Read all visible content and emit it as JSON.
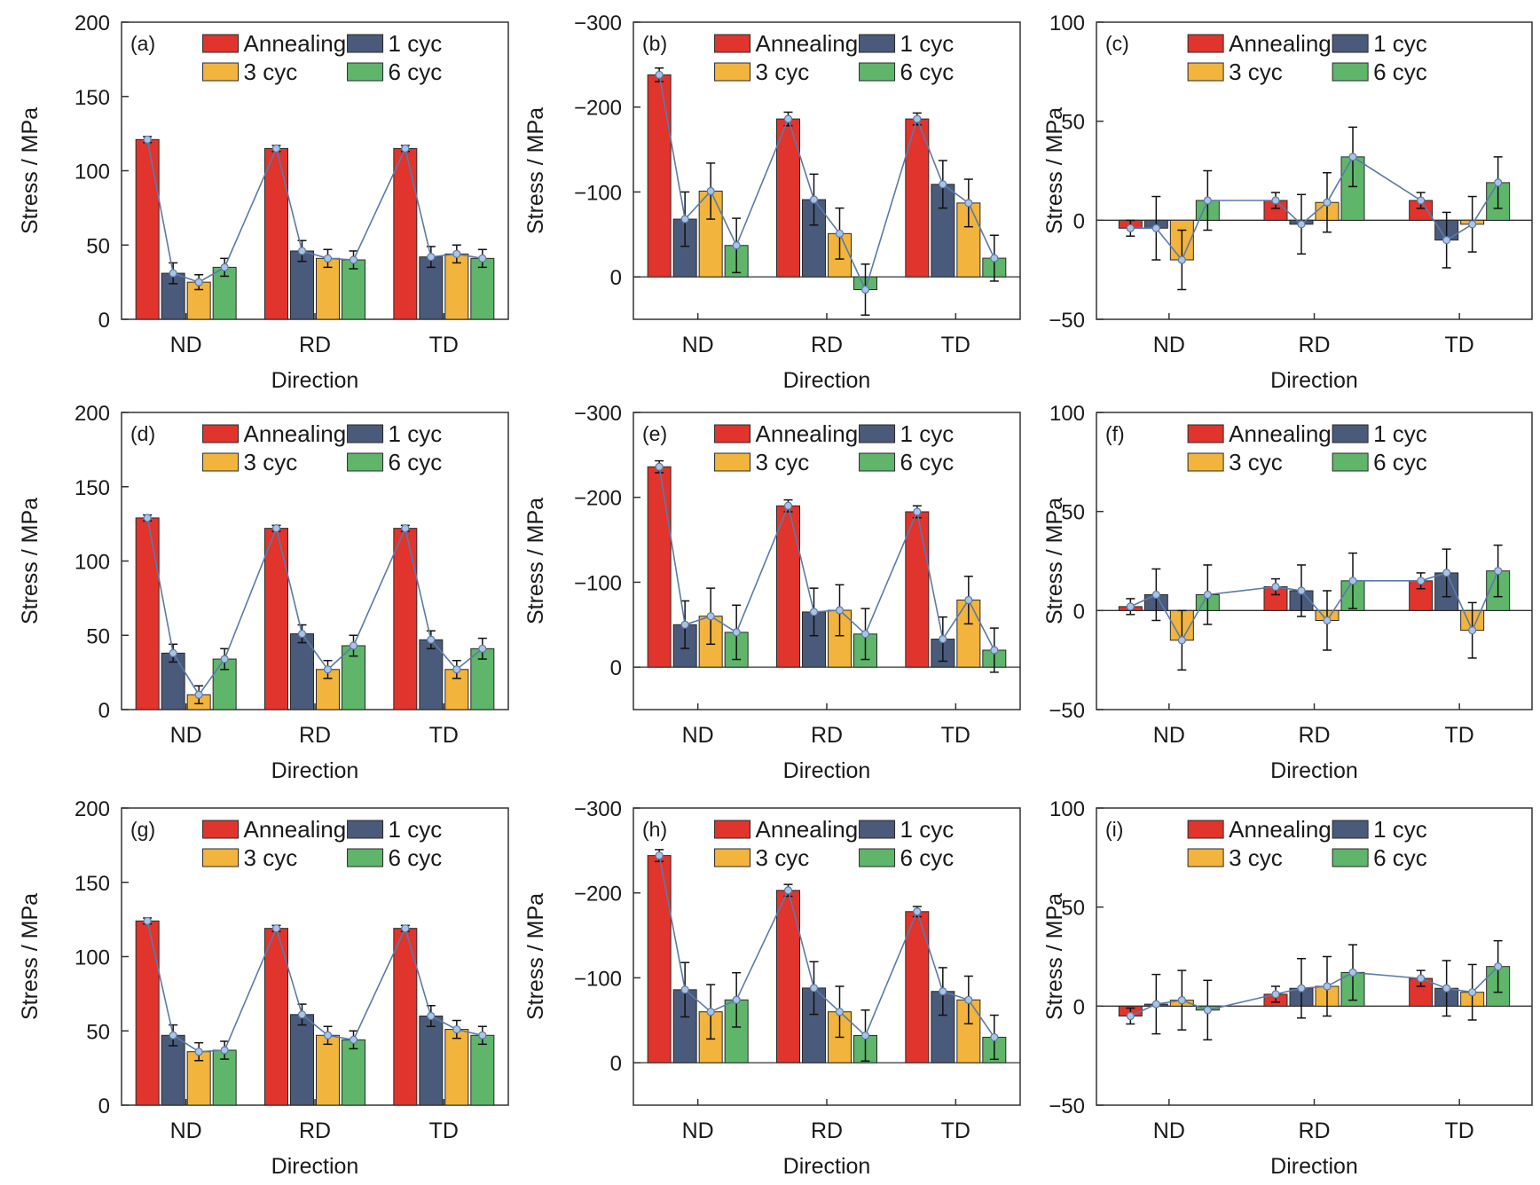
{
  "chart_data": [
    {
      "type": "bar",
      "panel_label": "(a)",
      "xlabel": "Direction",
      "ylabel": "Stress / MPa",
      "categories": [
        "ND",
        "RD",
        "TD"
      ],
      "yticks": [
        "200",
        "150",
        "100",
        "50",
        "0"
      ],
      "ylim": [
        0,
        200
      ],
      "inverted": false,
      "zero_line": false,
      "series": [
        {
          "name": "Annealing",
          "values": [
            121,
            115,
            115
          ],
          "errors": [
            2,
            2,
            2
          ]
        },
        {
          "name": "1 cyc",
          "values": [
            31,
            46,
            42
          ],
          "errors": [
            7,
            7,
            7
          ]
        },
        {
          "name": "3 cyc",
          "values": [
            25,
            41,
            44
          ],
          "errors": [
            5,
            6,
            6
          ]
        },
        {
          "name": "6 cyc",
          "values": [
            35,
            40,
            41
          ],
          "errors": [
            6,
            6,
            6
          ]
        }
      ]
    },
    {
      "type": "bar",
      "panel_label": "(b)",
      "xlabel": "Direction",
      "ylabel": "Stress / MPa",
      "categories": [
        "ND",
        "RD",
        "TD"
      ],
      "yticks": [
        "−300",
        "−200",
        "−100",
        "0"
      ],
      "ylim": [
        50,
        -300
      ],
      "inverted": true,
      "zero_line": true,
      "series": [
        {
          "name": "Annealing",
          "values": [
            -238,
            -186,
            -186
          ],
          "errors": [
            8,
            8,
            7
          ]
        },
        {
          "name": "1 cyc",
          "values": [
            -68,
            -91,
            -109
          ],
          "errors": [
            32,
            30,
            28
          ]
        },
        {
          "name": "3 cyc",
          "values": [
            -101,
            -51,
            -87
          ],
          "errors": [
            33,
            30,
            28
          ]
        },
        {
          "name": "6 cyc",
          "values": [
            -37,
            15,
            -22
          ],
          "errors": [
            32,
            30,
            27
          ]
        }
      ]
    },
    {
      "type": "bar",
      "panel_label": "(c)",
      "xlabel": "Direction",
      "ylabel": "Stress / MPa",
      "categories": [
        "ND",
        "RD",
        "TD"
      ],
      "yticks": [
        "100",
        "50",
        "0",
        "−50"
      ],
      "ylim": [
        -50,
        100
      ],
      "inverted": false,
      "zero_line": true,
      "series": [
        {
          "name": "Annealing",
          "values": [
            -4,
            10,
            10
          ],
          "errors": [
            4,
            4,
            4
          ]
        },
        {
          "name": "1 cyc",
          "values": [
            -4,
            -2,
            -10
          ],
          "errors": [
            16,
            15,
            14
          ]
        },
        {
          "name": "3 cyc",
          "values": [
            -20,
            9,
            -2
          ],
          "errors": [
            15,
            15,
            14
          ]
        },
        {
          "name": "6 cyc",
          "values": [
            10,
            32,
            19
          ],
          "errors": [
            15,
            15,
            13
          ]
        }
      ]
    },
    {
      "type": "bar",
      "panel_label": "(d)",
      "xlabel": "Direction",
      "ylabel": "Stress / MPa",
      "categories": [
        "ND",
        "RD",
        "TD"
      ],
      "yticks": [
        "200",
        "150",
        "100",
        "50",
        "0"
      ],
      "ylim": [
        0,
        200
      ],
      "inverted": false,
      "zero_line": false,
      "series": [
        {
          "name": "Annealing",
          "values": [
            129,
            122,
            122
          ],
          "errors": [
            2,
            2,
            2
          ]
        },
        {
          "name": "1 cyc",
          "values": [
            38,
            51,
            47
          ],
          "errors": [
            6,
            6,
            6
          ]
        },
        {
          "name": "3 cyc",
          "values": [
            10,
            27,
            27
          ],
          "errors": [
            6,
            6,
            6
          ]
        },
        {
          "name": "6 cyc",
          "values": [
            34,
            43,
            41
          ],
          "errors": [
            7,
            7,
            7
          ]
        }
      ]
    },
    {
      "type": "bar",
      "panel_label": "(e)",
      "xlabel": "Direction",
      "ylabel": "Stress / MPa",
      "categories": [
        "ND",
        "RD",
        "TD"
      ],
      "yticks": [
        "−300",
        "−200",
        "−100",
        "0"
      ],
      "ylim": [
        50,
        -300
      ],
      "inverted": true,
      "zero_line": true,
      "series": [
        {
          "name": "Annealing",
          "values": [
            -236,
            -190,
            -183
          ],
          "errors": [
            7,
            7,
            7
          ]
        },
        {
          "name": "1 cyc",
          "values": [
            -50,
            -65,
            -33
          ],
          "errors": [
            28,
            28,
            26
          ]
        },
        {
          "name": "3 cyc",
          "values": [
            -60,
            -67,
            -79
          ],
          "errors": [
            33,
            30,
            28
          ]
        },
        {
          "name": "6 cyc",
          "values": [
            -41,
            -39,
            -20
          ],
          "errors": [
            32,
            30,
            26
          ]
        }
      ]
    },
    {
      "type": "bar",
      "panel_label": "(f)",
      "xlabel": "Direction",
      "ylabel": "Stress / MPa",
      "categories": [
        "ND",
        "RD",
        "TD"
      ],
      "yticks": [
        "100",
        "50",
        "0",
        "−50"
      ],
      "ylim": [
        -50,
        100
      ],
      "inverted": false,
      "zero_line": true,
      "series": [
        {
          "name": "Annealing",
          "values": [
            2,
            12,
            15
          ],
          "errors": [
            4,
            4,
            4
          ]
        },
        {
          "name": "1 cyc",
          "values": [
            8,
            10,
            19
          ],
          "errors": [
            13,
            13,
            12
          ]
        },
        {
          "name": "3 cyc",
          "values": [
            -15,
            -5,
            -10
          ],
          "errors": [
            15,
            15,
            14
          ]
        },
        {
          "name": "6 cyc",
          "values": [
            8,
            15,
            20
          ],
          "errors": [
            15,
            14,
            13
          ]
        }
      ]
    },
    {
      "type": "bar",
      "panel_label": "(g)",
      "xlabel": "Direction",
      "ylabel": "Stress / MPa",
      "categories": [
        "ND",
        "RD",
        "TD"
      ],
      "yticks": [
        "200",
        "150",
        "100",
        "50",
        "0"
      ],
      "ylim": [
        0,
        200
      ],
      "inverted": false,
      "zero_line": false,
      "series": [
        {
          "name": "Annealing",
          "values": [
            124,
            119,
            119
          ],
          "errors": [
            2,
            2,
            2
          ]
        },
        {
          "name": "1 cyc",
          "values": [
            47,
            61,
            60
          ],
          "errors": [
            7,
            7,
            7
          ]
        },
        {
          "name": "3 cyc",
          "values": [
            36,
            47,
            51
          ],
          "errors": [
            6,
            6,
            6
          ]
        },
        {
          "name": "6 cyc",
          "values": [
            37,
            44,
            47
          ],
          "errors": [
            6,
            6,
            6
          ]
        }
      ]
    },
    {
      "type": "bar",
      "panel_label": "(h)",
      "xlabel": "Direction",
      "ylabel": "Stress / MPa",
      "categories": [
        "ND",
        "RD",
        "TD"
      ],
      "yticks": [
        "−300",
        "−200",
        "−100",
        "0"
      ],
      "ylim": [
        50,
        -300
      ],
      "inverted": true,
      "zero_line": true,
      "series": [
        {
          "name": "Annealing",
          "values": [
            -244,
            -203,
            -178
          ],
          "errors": [
            7,
            7,
            6
          ]
        },
        {
          "name": "1 cyc",
          "values": [
            -86,
            -88,
            -84
          ],
          "errors": [
            32,
            31,
            28
          ]
        },
        {
          "name": "3 cyc",
          "values": [
            -60,
            -60,
            -74
          ],
          "errors": [
            32,
            30,
            28
          ]
        },
        {
          "name": "6 cyc",
          "values": [
            -74,
            -32,
            -30
          ],
          "errors": [
            32,
            30,
            26
          ]
        }
      ]
    },
    {
      "type": "bar",
      "panel_label": "(i)",
      "xlabel": "Direction",
      "ylabel": "Stress / MPa",
      "categories": [
        "ND",
        "RD",
        "TD"
      ],
      "yticks": [
        "100",
        "50",
        "0",
        "−50"
      ],
      "ylim": [
        -50,
        100
      ],
      "inverted": false,
      "zero_line": true,
      "series": [
        {
          "name": "Annealing",
          "values": [
            -5,
            6,
            14
          ],
          "errors": [
            4,
            4,
            4
          ]
        },
        {
          "name": "1 cyc",
          "values": [
            1,
            9,
            9
          ],
          "errors": [
            15,
            15,
            14
          ]
        },
        {
          "name": "3 cyc",
          "values": [
            3,
            10,
            7
          ],
          "errors": [
            15,
            15,
            14
          ]
        },
        {
          "name": "6 cyc",
          "values": [
            -2,
            17,
            20
          ],
          "errors": [
            15,
            14,
            13
          ]
        }
      ]
    }
  ],
  "colors": {
    "Annealing": "#e0342c",
    "1 cyc": "#4a5a7a",
    "3 cyc": "#f2b43c",
    "6 cyc": "#5fb56a",
    "trend_line": "#5b7aa8",
    "marker": "#a9c4e4"
  }
}
